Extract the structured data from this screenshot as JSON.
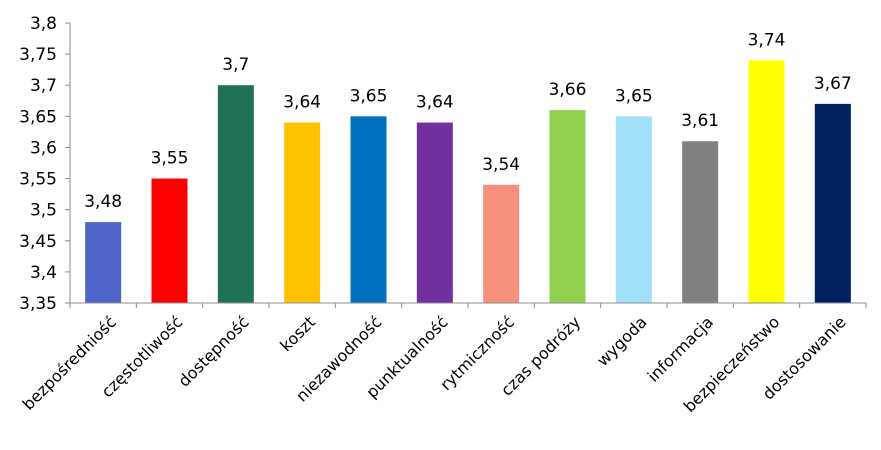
{
  "chart_data": {
    "type": "bar",
    "title": "",
    "xlabel": "",
    "ylabel": "",
    "ylim": [
      3.35,
      3.8
    ],
    "yticks": [
      "3,35",
      "3,4",
      "3,45",
      "3,5",
      "3,55",
      "3,6",
      "3,65",
      "3,7",
      "3,75",
      "3,8"
    ],
    "grid": false,
    "legend": "none",
    "categories": [
      "bezpośredniość",
      "częstotliwość",
      "dostępność",
      "koszt",
      "niezawodność",
      "punktualność",
      "rytmiczność",
      "czas podróży",
      "wygoda",
      "informacja",
      "bezpieczeństwo",
      "dostosowanie"
    ],
    "values": [
      3.48,
      3.55,
      3.7,
      3.64,
      3.65,
      3.64,
      3.54,
      3.66,
      3.65,
      3.61,
      3.74,
      3.67
    ],
    "value_labels": [
      "3,48",
      "3,55",
      "3,7",
      "3,64",
      "3,65",
      "3,64",
      "3,54",
      "3,66",
      "3,65",
      "3,61",
      "3,74",
      "3,67"
    ],
    "colors": [
      "#4F64C8",
      "#FF0000",
      "#1F7158",
      "#FFC000",
      "#0070C0",
      "#7030A0",
      "#F4907C",
      "#92D050",
      "#A0E0F8",
      "#808080",
      "#FFFF00",
      "#002060"
    ]
  }
}
